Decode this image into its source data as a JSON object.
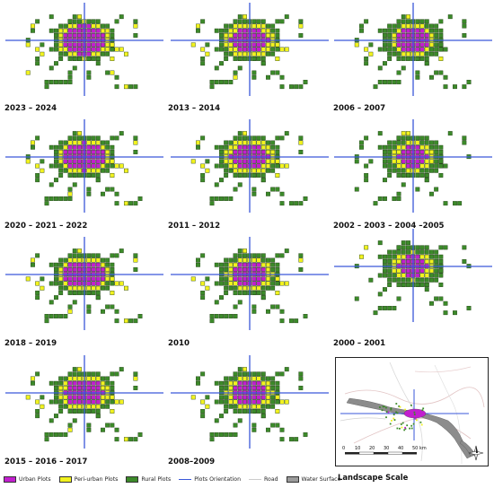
{
  "panels": [
    {
      "label": "2023 – 2024",
      "stage": 0.98
    },
    {
      "label": "2013 – 2014",
      "stage": 0.82
    },
    {
      "label": "2006 – 2007",
      "stage": 0.55
    },
    {
      "label": "2020 – 2021 – 2022",
      "stage": 0.94
    },
    {
      "label": "2011 – 2012",
      "stage": 0.76
    },
    {
      "label": "2002 – 2003 – 2004 –2005",
      "stage": 0.45
    },
    {
      "label": "2018 – 2019",
      "stage": 0.9
    },
    {
      "label": "2010",
      "stage": 0.7
    },
    {
      "label": "2000 – 2001",
      "stage": 0.35
    },
    {
      "label": "2015 – 2016 – 2017",
      "stage": 0.86
    },
    {
      "label": "2008–2009",
      "stage": 0.63
    }
  ],
  "landscape": {
    "title": "Landscape Scale",
    "scale_labels": [
      "0",
      "10",
      "20",
      "30",
      "40",
      "50 km"
    ]
  },
  "legend": [
    {
      "label": "Urban Plots",
      "kind": "swatch",
      "color": "#c21fcf"
    },
    {
      "label": "Peri-urban Plots",
      "kind": "swatch",
      "color": "#f2f21f"
    },
    {
      "label": "Rural Plots",
      "kind": "swatch",
      "color": "#3c8a2a"
    },
    {
      "label": "Plots Orientation",
      "kind": "line",
      "color": "#3a57d9"
    },
    {
      "label": "Road",
      "kind": "line",
      "color": "#cccccc"
    },
    {
      "label": "Water Surface",
      "kind": "swatch",
      "color": "#9b9b9b"
    }
  ],
  "colors": {
    "urban": "#c21fcf",
    "periurban": "#f2f21f",
    "rural": "#3c8a2a",
    "axis": "#3a57d9",
    "water": "#9b9b9b",
    "road": "#cccccc"
  }
}
